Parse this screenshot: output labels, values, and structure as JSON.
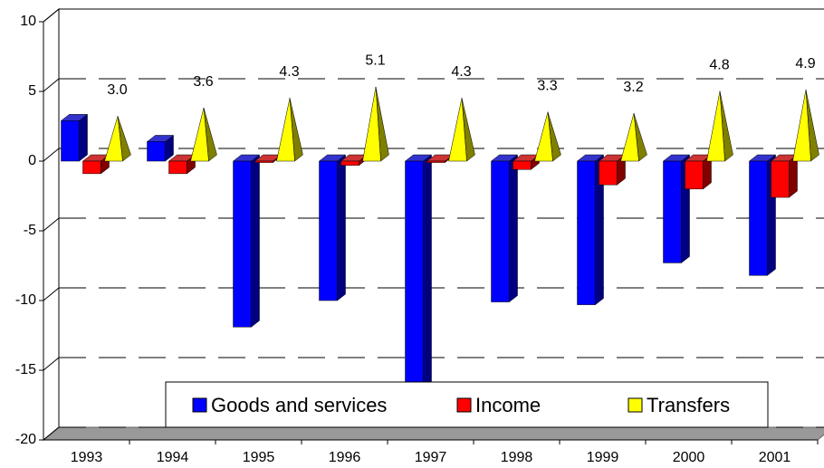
{
  "chart_data": {
    "type": "bar3d",
    "categories": [
      "1993",
      "1994",
      "1995",
      "1996",
      "1997",
      "1998",
      "1999",
      "2000",
      "2001"
    ],
    "series": [
      {
        "name": "Goods and services",
        "color": "#0000ff",
        "values": [
          2.9,
          1.4,
          -11.9,
          -10.0,
          -16.5,
          -10.1,
          -10.3,
          -7.3,
          -8.2
        ]
      },
      {
        "name": "Income",
        "color": "#ff0000",
        "values": [
          -0.9,
          -0.9,
          -0.1,
          -0.3,
          -0.1,
          -0.6,
          -1.7,
          -2.0,
          -2.6
        ]
      },
      {
        "name": "Transfers",
        "color": "#ffff00",
        "values": [
          3.0,
          3.6,
          4.3,
          5.1,
          4.3,
          3.3,
          3.2,
          4.8,
          4.9
        ],
        "value_labels": [
          "3.0",
          "3.6",
          "4.3",
          "5.1",
          "4.3",
          "3.3",
          "3.2",
          "4.8",
          "4.9"
        ]
      }
    ],
    "ylim": [
      -20,
      10
    ],
    "yticks": [
      -20,
      -15,
      -10,
      -5,
      0,
      5,
      10
    ],
    "grid": true,
    "legend": "bottom"
  }
}
